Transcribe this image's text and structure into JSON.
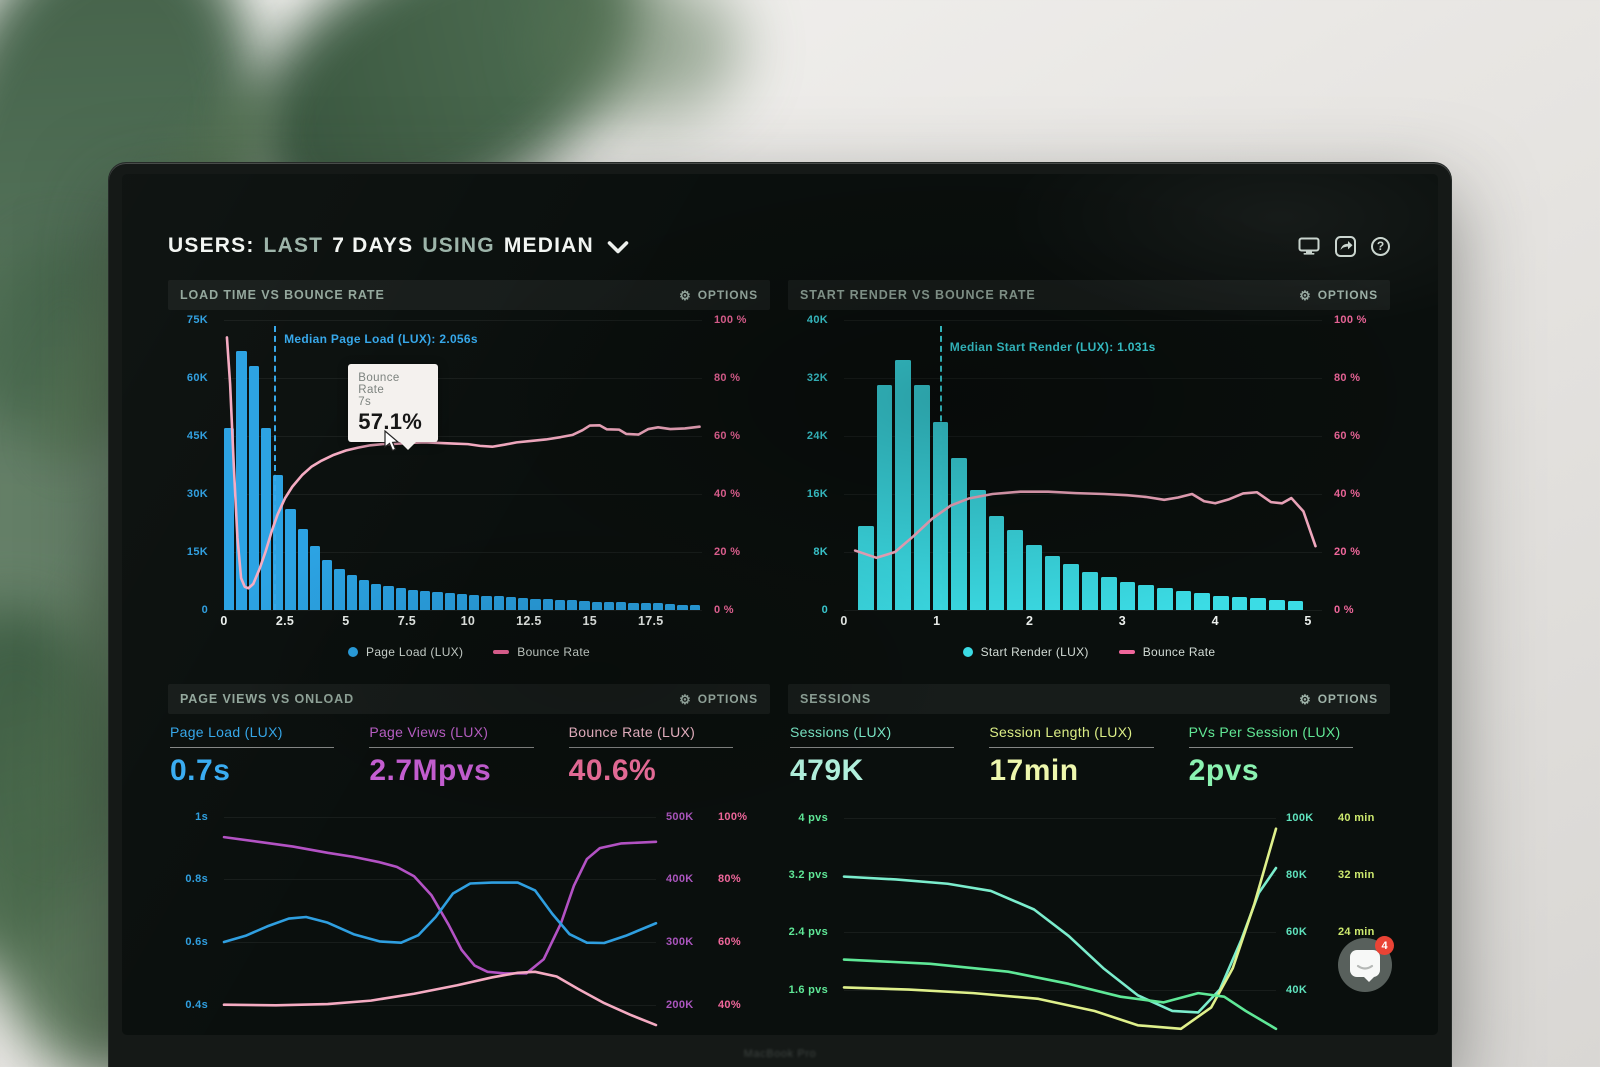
{
  "ui": {
    "gear": "⚙",
    "help": "?"
  },
  "header": {
    "title": [
      {
        "text": "USERS:",
        "muted": false
      },
      {
        "text": "LAST",
        "muted": true
      },
      {
        "text": "7 DAYS",
        "muted": false
      },
      {
        "text": "USING",
        "muted": true
      },
      {
        "text": "MEDIAN",
        "muted": false
      }
    ]
  },
  "chat": {
    "badge": "4"
  },
  "device": {
    "label": "MacBook Pro"
  },
  "panels": {
    "p1": {
      "title": "LOAD TIME VS BOUNCE RATE",
      "options": "OPTIONS",
      "median": {
        "v": 2.056,
        "label": "Median Page Load (LUX): 2.056s",
        "color": "#35a7ea"
      },
      "tooltip": {
        "label": "Bounce Rate",
        "x": "7s",
        "value": "57.1%"
      },
      "legend": [
        {
          "type": "dot",
          "color": "#2aa2e3",
          "label": "Page Load (LUX)"
        },
        {
          "type": "line",
          "color": "#f0679b",
          "label": "Bounce Rate"
        }
      ],
      "axis": {
        "x_max": 19.6,
        "left_color": "#2f9fe0",
        "right_color": "#f0679b",
        "y_left": [
          "75K",
          "60K",
          "45K",
          "30K",
          "15K",
          "0"
        ],
        "y_right": [
          "100 %",
          "80 %",
          "60 %",
          "40 %",
          "20 %",
          "0 %"
        ],
        "x": [
          {
            "v": 0,
            "label": "0"
          },
          {
            "v": 2.5,
            "label": "2.5"
          },
          {
            "v": 5,
            "label": "5"
          },
          {
            "v": 7.5,
            "label": "7.5"
          },
          {
            "v": 10,
            "label": "10"
          },
          {
            "v": 12.5,
            "label": "12.5"
          },
          {
            "v": 15,
            "label": "15"
          },
          {
            "v": 17.5,
            "label": "17.5"
          }
        ]
      },
      "bars": {
        "name": "Page Load (LUX)",
        "color": "#2aa2e3",
        "y_max": 75,
        "start": 0,
        "bin": 0.5,
        "values": [
          47,
          67,
          63,
          47,
          35,
          26,
          21,
          16.5,
          13,
          10.6,
          9,
          7.7,
          6.6,
          6.1,
          5.6,
          5.2,
          4.9,
          4.6,
          4.3,
          4.1,
          3.9,
          3.7,
          3.5,
          3.3,
          3.1,
          2.9,
          2.8,
          2.6,
          2.5,
          2.3,
          2.2,
          2.1,
          2,
          1.9,
          1.8,
          1.7,
          1.6,
          1.4,
          1.2
        ]
      },
      "line": {
        "name": "Bounce Rate",
        "color": "#f5abc2",
        "points": [
          [
            0.12,
            94
          ],
          [
            0.25,
            78
          ],
          [
            0.4,
            50
          ],
          [
            0.55,
            25
          ],
          [
            0.7,
            11
          ],
          [
            0.85,
            8
          ],
          [
            1,
            7.5
          ],
          [
            1.2,
            9
          ],
          [
            1.45,
            14
          ],
          [
            1.7,
            20
          ],
          [
            1.95,
            27
          ],
          [
            2.2,
            33
          ],
          [
            2.5,
            38.5
          ],
          [
            2.8,
            42.5
          ],
          [
            3.2,
            46.5
          ],
          [
            3.6,
            49.5
          ],
          [
            4,
            51.5
          ],
          [
            4.5,
            53.5
          ],
          [
            5,
            55
          ],
          [
            5.5,
            56
          ],
          [
            6,
            56.8
          ],
          [
            6.5,
            57.2
          ],
          [
            7,
            57.3
          ],
          [
            7.6,
            57.6
          ],
          [
            8.2,
            57.8
          ],
          [
            8.8,
            57.6
          ],
          [
            9.4,
            57.4
          ],
          [
            10,
            57.2
          ],
          [
            10.5,
            56.6
          ],
          [
            11,
            56.3
          ],
          [
            11.5,
            57
          ],
          [
            12,
            57.8
          ],
          [
            12.6,
            58.3
          ],
          [
            13.2,
            58.8
          ],
          [
            13.8,
            59.6
          ],
          [
            14.3,
            60.4
          ],
          [
            14.7,
            62
          ],
          [
            15,
            63.6
          ],
          [
            15.4,
            63.7
          ],
          [
            15.7,
            62.3
          ],
          [
            16.2,
            62.2
          ],
          [
            16.5,
            60.7
          ],
          [
            17,
            60.5
          ],
          [
            17.4,
            62.4
          ],
          [
            17.8,
            63
          ],
          [
            18.3,
            62.4
          ],
          [
            18.9,
            62.6
          ],
          [
            19.5,
            63.2
          ]
        ]
      }
    },
    "p2": {
      "title": "START RENDER VS BOUNCE RATE",
      "options": "OPTIONS",
      "median": {
        "v": 1.031,
        "label": "Median Start Render (LUX): 1.031s",
        "color": "#3edee6"
      },
      "legend": [
        {
          "type": "dot",
          "color": "#3bdce5",
          "label": "Start Render (LUX)"
        },
        {
          "type": "line",
          "color": "#f0679b",
          "label": "Bounce Rate"
        }
      ],
      "axis": {
        "x_max": 5.15,
        "left_color": "#3ed6de",
        "right_color": "#f0679b",
        "y_left": [
          "40K",
          "32K",
          "24K",
          "16K",
          "8K",
          "0"
        ],
        "y_right": [
          "100 %",
          "80 %",
          "60 %",
          "40 %",
          "20 %",
          "0 %"
        ],
        "x": [
          {
            "v": 0,
            "label": "0"
          },
          {
            "v": 1,
            "label": "1"
          },
          {
            "v": 2,
            "label": "2"
          },
          {
            "v": 3,
            "label": "3"
          },
          {
            "v": 4,
            "label": "4"
          },
          {
            "v": 5,
            "label": "5"
          }
        ]
      },
      "bars": {
        "name": "Start Render (LUX)",
        "color": "#3bdce5",
        "y_max": 40,
        "start": 0.15,
        "bin": 0.2,
        "values": [
          11.6,
          31,
          34.5,
          31,
          26,
          21,
          16.5,
          13,
          11,
          9,
          7.5,
          6.3,
          5.3,
          4.5,
          3.9,
          3.4,
          3,
          2.6,
          2.3,
          2,
          1.8,
          1.6,
          1.4,
          1.2
        ]
      },
      "line": {
        "name": "Bounce Rate",
        "color": "#f5abc2",
        "points": [
          [
            0.12,
            20.5
          ],
          [
            0.35,
            18
          ],
          [
            0.55,
            20
          ],
          [
            0.75,
            25.5
          ],
          [
            0.95,
            31.5
          ],
          [
            1.15,
            36
          ],
          [
            1.35,
            38.5
          ],
          [
            1.6,
            40
          ],
          [
            1.9,
            40.8
          ],
          [
            2.2,
            40.8
          ],
          [
            2.5,
            40.3
          ],
          [
            2.8,
            40
          ],
          [
            3.05,
            39.6
          ],
          [
            3.25,
            39
          ],
          [
            3.45,
            38
          ],
          [
            3.6,
            38.8
          ],
          [
            3.75,
            40
          ],
          [
            3.88,
            37.5
          ],
          [
            4,
            36.8
          ],
          [
            4.15,
            38.2
          ],
          [
            4.3,
            40.2
          ],
          [
            4.45,
            40.6
          ],
          [
            4.6,
            37.2
          ],
          [
            4.72,
            36.8
          ],
          [
            4.82,
            38.6
          ],
          [
            4.95,
            34
          ],
          [
            5.08,
            22
          ]
        ]
      }
    },
    "p3": {
      "title": "PAGE VIEWS VS ONLOAD",
      "options": "OPTIONS",
      "metrics": [
        {
          "label": "Page Load (LUX)",
          "value": "0.7s",
          "label_color": "#35a7ea",
          "value_color": "#39acf2"
        },
        {
          "label": "Page Views (LUX)",
          "value": "2.7Mpvs",
          "label_color": "#c263cf",
          "value_color": "#cb61d8"
        },
        {
          "label": "Bounce Rate (LUX)",
          "value": "40.6%",
          "label_color": "#f8bfd0",
          "value_color": "#f2719f"
        }
      ],
      "y_range": [
        0.3,
        1.06
      ],
      "axis_colors": {
        "left": "#2f9fe0",
        "r1": "#aa55bd",
        "r2": "#f0679b"
      },
      "grid": [
        {
          "v": 1.0,
          "left": "1s",
          "r1": "500K",
          "r2": "100%"
        },
        {
          "v": 0.8,
          "left": "0.8s",
          "r1": "400K",
          "r2": "80%"
        },
        {
          "v": 0.6,
          "left": "0.6s",
          "r1": "300K",
          "r2": "60%"
        },
        {
          "v": 0.4,
          "left": "0.4s",
          "r1": "200K",
          "r2": "40%"
        }
      ],
      "lines": [
        {
          "name": "Page Views (LUX)",
          "color": "#b352c4",
          "points": [
            [
              0,
              0.935
            ],
            [
              0.08,
              0.92
            ],
            [
              0.16,
              0.905
            ],
            [
              0.24,
              0.885
            ],
            [
              0.3,
              0.872
            ],
            [
              0.36,
              0.855
            ],
            [
              0.4,
              0.84
            ],
            [
              0.44,
              0.81
            ],
            [
              0.48,
              0.75
            ],
            [
              0.52,
              0.655
            ],
            [
              0.55,
              0.575
            ],
            [
              0.58,
              0.525
            ],
            [
              0.61,
              0.505
            ],
            [
              0.65,
              0.5
            ],
            [
              0.7,
              0.5
            ],
            [
              0.74,
              0.545
            ],
            [
              0.78,
              0.66
            ],
            [
              0.81,
              0.78
            ],
            [
              0.84,
              0.865
            ],
            [
              0.87,
              0.9
            ],
            [
              0.92,
              0.915
            ],
            [
              1,
              0.92
            ]
          ]
        },
        {
          "name": "Page Load (LUX)",
          "color": "#2f9fe0",
          "points": [
            [
              0,
              0.6
            ],
            [
              0.05,
              0.62
            ],
            [
              0.1,
              0.65
            ],
            [
              0.15,
              0.675
            ],
            [
              0.19,
              0.68
            ],
            [
              0.24,
              0.662
            ],
            [
              0.3,
              0.625
            ],
            [
              0.36,
              0.602
            ],
            [
              0.41,
              0.598
            ],
            [
              0.45,
              0.622
            ],
            [
              0.49,
              0.68
            ],
            [
              0.53,
              0.755
            ],
            [
              0.57,
              0.787
            ],
            [
              0.62,
              0.79
            ],
            [
              0.68,
              0.79
            ],
            [
              0.72,
              0.765
            ],
            [
              0.76,
              0.69
            ],
            [
              0.8,
              0.625
            ],
            [
              0.84,
              0.598
            ],
            [
              0.88,
              0.597
            ],
            [
              0.93,
              0.62
            ],
            [
              1,
              0.66
            ]
          ]
        },
        {
          "name": "Bounce Rate (LUX)",
          "color": "#f5abc2",
          "points": [
            [
              0,
              0.4
            ],
            [
              0.12,
              0.398
            ],
            [
              0.24,
              0.402
            ],
            [
              0.34,
              0.413
            ],
            [
              0.44,
              0.435
            ],
            [
              0.54,
              0.462
            ],
            [
              0.62,
              0.487
            ],
            [
              0.68,
              0.502
            ],
            [
              0.72,
              0.505
            ],
            [
              0.77,
              0.49
            ],
            [
              0.82,
              0.45
            ],
            [
              0.88,
              0.405
            ],
            [
              0.94,
              0.368
            ],
            [
              1,
              0.335
            ]
          ]
        }
      ]
    },
    "p4": {
      "title": "SESSIONS",
      "options": "OPTIONS",
      "metrics": [
        {
          "label": "Sessions (LUX)",
          "value": "479K",
          "label_color": "#7deccb",
          "value_color": "#b5f6e2"
        },
        {
          "label": "Session Length (LUX)",
          "value": "17min",
          "label_color": "#dcee86",
          "value_color": "#eef7ad"
        },
        {
          "label": "PVs Per Session (LUX)",
          "value": "2pvs",
          "label_color": "#62e996",
          "value_color": "#8bf3b1"
        }
      ],
      "y_range": [
        0.95,
        4.28
      ],
      "axis_colors": {
        "left": "#5fe897",
        "r1": "#5fe2bd",
        "r2": "#cde96e"
      },
      "grid": [
        {
          "v": 4,
          "left": "4 pvs",
          "r1": "100K",
          "r2": "40 min"
        },
        {
          "v": 3.2,
          "left": "3.2 pvs",
          "r1": "80K",
          "r2": "32 min"
        },
        {
          "v": 2.4,
          "left": "2.4 pvs",
          "r1": "60K",
          "r2": "24 min"
        },
        {
          "v": 1.6,
          "left": "1.6 pvs",
          "r1": "40K",
          "r2": ""
        }
      ],
      "lines": [
        {
          "name": "Sessions (LUX)",
          "color": "#7bedcd",
          "points": [
            [
              0,
              3.18
            ],
            [
              0.12,
              3.14
            ],
            [
              0.24,
              3.08
            ],
            [
              0.34,
              2.98
            ],
            [
              0.44,
              2.72
            ],
            [
              0.52,
              2.35
            ],
            [
              0.6,
              1.9
            ],
            [
              0.68,
              1.52
            ],
            [
              0.76,
              1.3
            ],
            [
              0.82,
              1.28
            ],
            [
              0.87,
              1.6
            ],
            [
              0.92,
              2.3
            ],
            [
              0.96,
              2.95
            ],
            [
              1,
              3.3
            ]
          ]
        },
        {
          "name": "Session Length (LUX)",
          "color": "#dff08b",
          "points": [
            [
              0,
              1.63
            ],
            [
              0.15,
              1.6
            ],
            [
              0.3,
              1.55
            ],
            [
              0.45,
              1.47
            ],
            [
              0.58,
              1.3
            ],
            [
              0.68,
              1.1
            ],
            [
              0.78,
              1.05
            ],
            [
              0.85,
              1.35
            ],
            [
              0.9,
              1.9
            ],
            [
              0.95,
              2.8
            ],
            [
              1,
              3.85
            ]
          ]
        },
        {
          "name": "PVs Per Session (LUX)",
          "color": "#5fe897",
          "points": [
            [
              0,
              2.02
            ],
            [
              0.2,
              1.96
            ],
            [
              0.38,
              1.85
            ],
            [
              0.52,
              1.68
            ],
            [
              0.64,
              1.5
            ],
            [
              0.74,
              1.42
            ],
            [
              0.82,
              1.55
            ],
            [
              0.88,
              1.5
            ],
            [
              0.93,
              1.3
            ],
            [
              1,
              1.05
            ]
          ]
        }
      ]
    }
  }
}
